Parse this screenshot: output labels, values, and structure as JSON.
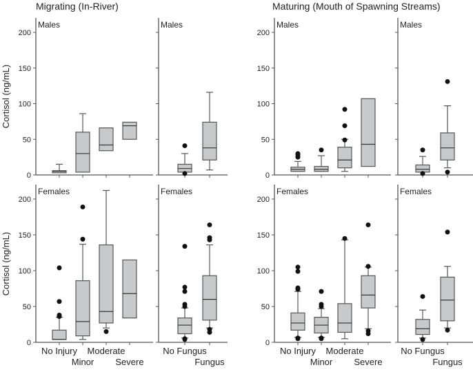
{
  "chart_data": {
    "type": "boxplot",
    "group_titles": [
      "Migrating (In-River)",
      "Maturing (Mouth of Spawning Streams)"
    ],
    "ylabel": "Cortisol (ng/mL)",
    "ylim": [
      0,
      220
    ],
    "yticks": [
      0,
      50,
      100,
      150,
      200
    ],
    "colors": {
      "box": "#c8c9cb",
      "edge": "#555555",
      "point": "#111111"
    },
    "panels": [
      {
        "group": 0,
        "row": 0,
        "sex": "Males",
        "categories": [
          "No Injury",
          "Minor",
          "Moderate",
          "Severe"
        ],
        "boxes": [
          {
            "q1": 3,
            "med": 5,
            "q3": 6,
            "wl": 3,
            "wh": 15,
            "out": []
          },
          {
            "q1": 4,
            "med": 30,
            "q3": 60,
            "wl": 4,
            "wh": 86,
            "out": []
          },
          {
            "q1": 34,
            "med": 42,
            "q3": 66,
            "out": []
          },
          {
            "q1": 50,
            "med": 69,
            "q3": 74,
            "out": []
          }
        ]
      },
      {
        "group": 0,
        "row": 0,
        "sex": "Males",
        "categories": [
          "No Fungus",
          "Fungus"
        ],
        "boxes": [
          {
            "q1": 4,
            "med": 9,
            "q3": 15,
            "wl": 4,
            "wh": 30,
            "out": [
              41,
              2
            ]
          },
          {
            "q1": 21,
            "med": 38,
            "q3": 74,
            "wl": 7,
            "wh": 116,
            "out": []
          }
        ]
      },
      {
        "group": 1,
        "row": 0,
        "sex": "Males",
        "categories": [
          "No Injury",
          "Minor",
          "Moderate",
          "Severe"
        ],
        "boxes": [
          {
            "q1": 5,
            "med": 8,
            "q3": 11,
            "wl": 5,
            "wh": 19,
            "out": [
              25,
              28,
              30
            ]
          },
          {
            "q1": 5,
            "med": 8,
            "q3": 12,
            "wl": 5,
            "wh": 27,
            "out": [
              35
            ]
          },
          {
            "q1": 10,
            "med": 21,
            "q3": 39,
            "wl": 5,
            "wh": 50,
            "out": [
              49,
              69,
              92
            ]
          },
          {
            "q1": 12,
            "med": 43,
            "q3": 107,
            "out": []
          }
        ]
      },
      {
        "group": 1,
        "row": 0,
        "sex": "Males",
        "categories": [
          "No Fungus",
          "Fungus"
        ],
        "boxes": [
          {
            "q1": 4,
            "med": 8,
            "q3": 14,
            "wl": 4,
            "wh": 26,
            "out": [
              35,
              2
            ]
          },
          {
            "q1": 21,
            "med": 38,
            "q3": 59,
            "wl": 10,
            "wh": 97,
            "out": [
              4,
              131
            ]
          }
        ]
      },
      {
        "group": 0,
        "row": 1,
        "sex": "Females",
        "categories": [
          "No Injury",
          "Minor",
          "Moderate",
          "Severe"
        ],
        "boxes": [
          {
            "q1": 4,
            "med": 4,
            "q3": 17,
            "wl": 4,
            "wh": 35,
            "out": [
              104,
              57,
              38,
              36
            ]
          },
          {
            "q1": 9,
            "med": 29,
            "q3": 86,
            "wl": 4,
            "wh": 137,
            "out": [
              144,
              189
            ]
          },
          {
            "q1": 27,
            "med": 43,
            "q3": 136,
            "wl": 20,
            "wh": 212,
            "out": [
              15
            ]
          },
          {
            "q1": 34,
            "med": 68,
            "q3": 115,
            "out": []
          }
        ]
      },
      {
        "group": 0,
        "row": 1,
        "sex": "Females",
        "categories": [
          "No Fungus",
          "Fungus"
        ],
        "boxes": [
          {
            "q1": 12,
            "med": 24,
            "q3": 34,
            "wl": 6,
            "wh": 48,
            "out": [
              4,
              5,
              134,
              77,
              71,
              53,
              50
            ]
          },
          {
            "q1": 31,
            "med": 60,
            "q3": 93,
            "wl": 20,
            "wh": 136,
            "out": [
              14,
              18,
              164,
              146,
              143
            ]
          }
        ]
      },
      {
        "group": 1,
        "row": 1,
        "sex": "Females",
        "categories": [
          "No Injury",
          "Minor",
          "Moderate",
          "Severe"
        ],
        "boxes": [
          {
            "q1": 17,
            "med": 27,
            "q3": 41,
            "wl": 7,
            "wh": 71,
            "out": [
              5,
              6,
              74,
              76,
              99,
              105
            ]
          },
          {
            "q1": 13,
            "med": 24,
            "q3": 35,
            "wl": 7,
            "wh": 47,
            "out": [
              5,
              6,
              50,
              53,
              71
            ]
          },
          {
            "q1": 14,
            "med": 27,
            "q3": 54,
            "wl": 5,
            "wh": 143,
            "out": [
              145
            ]
          },
          {
            "q1": 48,
            "med": 66,
            "q3": 93,
            "wl": 19,
            "wh": 105,
            "out": [
              12,
              16,
              106,
              164
            ]
          }
        ]
      },
      {
        "group": 1,
        "row": 1,
        "sex": "Females",
        "categories": [
          "No Fungus",
          "Fungus"
        ],
        "boxes": [
          {
            "q1": 11,
            "med": 19,
            "q3": 32,
            "wl": 6,
            "wh": 45,
            "out": [
              4,
              64
            ]
          },
          {
            "q1": 30,
            "med": 59,
            "q3": 91,
            "wl": 20,
            "wh": 106,
            "out": [
              17,
              154
            ]
          }
        ]
      }
    ]
  }
}
